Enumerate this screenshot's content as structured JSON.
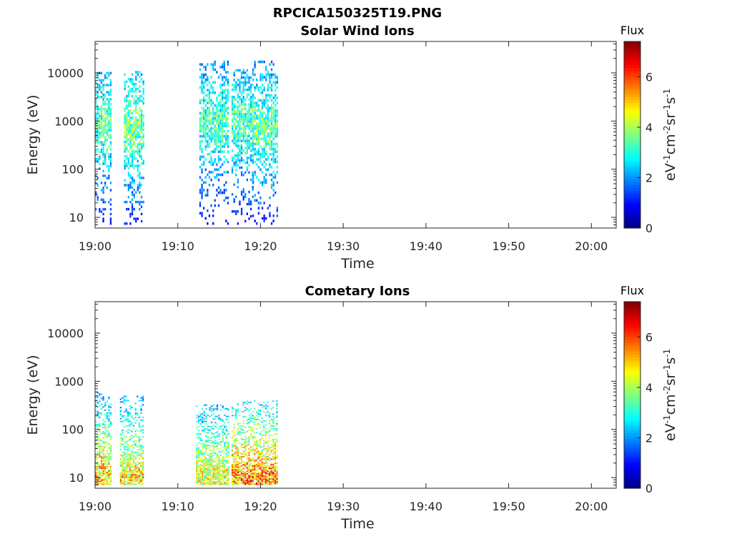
{
  "figure": {
    "filename": "RPCICA150325T19.PNG"
  },
  "colors": {
    "axis": "#262626",
    "colormap": "jet"
  },
  "chart_data": [
    {
      "type": "heatmap",
      "title": "Solar Wind Ions",
      "xlabel": "Time",
      "ylabel": "Energy (eV)",
      "x_ticks": [
        "19:00",
        "19:10",
        "19:20",
        "19:30",
        "19:40",
        "19:50",
        "20:00"
      ],
      "xlim": [
        "19:00",
        "20:03"
      ],
      "y_scale": "log",
      "y_ticks": [
        "10",
        "100",
        "1000",
        "10000"
      ],
      "ylim": [
        6,
        45000
      ],
      "colorbar": {
        "title": "Flux",
        "label": "eV-1cm-2sr-1s-1",
        "label_parts": [
          {
            "t": "eV"
          },
          {
            "t": "-1",
            "sup": true
          },
          {
            "t": "cm"
          },
          {
            "t": "-2",
            "sup": true
          },
          {
            "t": "sr"
          },
          {
            "t": "-1",
            "sup": true
          },
          {
            "t": "s"
          },
          {
            "t": "-1",
            "sup": true
          }
        ],
        "range": [
          0,
          7.4
        ],
        "ticks": [
          "0",
          "2",
          "4",
          "6"
        ]
      },
      "activity": [
        {
          "start": "19:00.0",
          "end": "19:01.8",
          "e_min": 7,
          "e_max": 10500,
          "peak_energy": 800,
          "max_flux": 4.5
        },
        {
          "start": "19:03.5",
          "end": "19:05.8",
          "e_min": 7,
          "e_max": 11000,
          "peak_energy": 700,
          "max_flux": 4.8
        },
        {
          "start": "19:12.6",
          "end": "19:16.0",
          "e_min": 7,
          "e_max": 18000,
          "peak_energy": 900,
          "max_flux": 4.3
        },
        {
          "start": "19:16.5",
          "end": "19:19.0",
          "e_min": 7,
          "e_max": 12000,
          "peak_energy": 900,
          "max_flux": 4.4
        },
        {
          "start": "19:19.0",
          "end": "19:22.0",
          "e_min": 7,
          "e_max": 18000,
          "peak_energy": 700,
          "max_flux": 4.6
        }
      ]
    },
    {
      "type": "heatmap",
      "title": "Cometary Ions",
      "xlabel": "Time",
      "ylabel": "Energy (eV)",
      "x_ticks": [
        "19:00",
        "19:10",
        "19:20",
        "19:30",
        "19:40",
        "19:50",
        "20:00"
      ],
      "xlim": [
        "19:00",
        "20:03"
      ],
      "y_scale": "log",
      "y_ticks": [
        "10",
        "100",
        "1000",
        "10000"
      ],
      "ylim": [
        6,
        45000
      ],
      "colorbar": {
        "title": "Flux",
        "label": "eV-1cm-2sr-1s-1",
        "label_parts": [
          {
            "t": "eV"
          },
          {
            "t": "-1",
            "sup": true
          },
          {
            "t": "cm"
          },
          {
            "t": "-2",
            "sup": true
          },
          {
            "t": "sr"
          },
          {
            "t": "-1",
            "sup": true
          },
          {
            "t": "s"
          },
          {
            "t": "-1",
            "sup": true
          }
        ],
        "range": [
          0,
          7.4
        ],
        "ticks": [
          "0",
          "2",
          "4",
          "6"
        ]
      },
      "activity": [
        {
          "start": "19:00.0",
          "end": "19:02.0",
          "e_min": 7,
          "e_max": 600,
          "peak_energy": 10,
          "max_flux": 6.6
        },
        {
          "start": "19:03.0",
          "end": "19:05.8",
          "e_min": 7,
          "e_max": 500,
          "peak_energy": 10,
          "max_flux": 6.2
        },
        {
          "start": "19:12.2",
          "end": "19:16.2",
          "e_min": 7,
          "e_max": 330,
          "peak_energy": 10,
          "max_flux": 5.8
        },
        {
          "start": "19:16.5",
          "end": "19:22.0",
          "e_min": 7,
          "e_max": 400,
          "peak_energy": 10,
          "max_flux": 7.2
        }
      ]
    }
  ]
}
